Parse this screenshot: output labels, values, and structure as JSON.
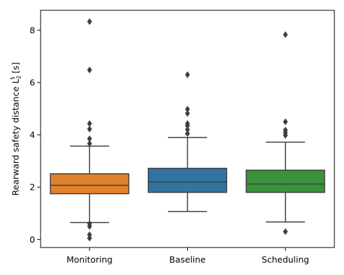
{
  "chart_data": {
    "type": "box",
    "categories": [
      "Monitoring",
      "Baseline",
      "Scheduling"
    ],
    "ylabel": "Rearward safety distance L",
    "ylabel_sub": "2",
    "ylabel_sup": "§",
    "ylabel_unit": "[s]",
    "ylim": [
      -0.3,
      8.75
    ],
    "yticks": [
      0,
      2,
      4,
      6,
      8
    ],
    "grid": false,
    "legend": "none",
    "series": [
      {
        "category": "Monitoring",
        "color": "#e1812c",
        "whisker_low": 0.65,
        "q1": 1.75,
        "median": 2.07,
        "q3": 2.51,
        "whisker_high": 3.57,
        "outliers": [
          0.05,
          0.18,
          0.5,
          0.6,
          3.67,
          3.85,
          4.22,
          4.43,
          6.48,
          8.33
        ]
      },
      {
        "category": "Baseline",
        "color": "#3274a1",
        "whisker_low": 1.07,
        "q1": 1.8,
        "median": 2.2,
        "q3": 2.72,
        "whisker_high": 3.9,
        "outliers": [
          4.05,
          4.2,
          4.35,
          4.43,
          4.82,
          4.98,
          6.3
        ]
      },
      {
        "category": "Scheduling",
        "color": "#3a923a",
        "whisker_low": 0.67,
        "q1": 1.8,
        "median": 2.12,
        "q3": 2.65,
        "whisker_high": 3.72,
        "outliers": [
          0.3,
          3.98,
          4.08,
          4.18,
          4.5,
          7.83
        ]
      }
    ]
  }
}
